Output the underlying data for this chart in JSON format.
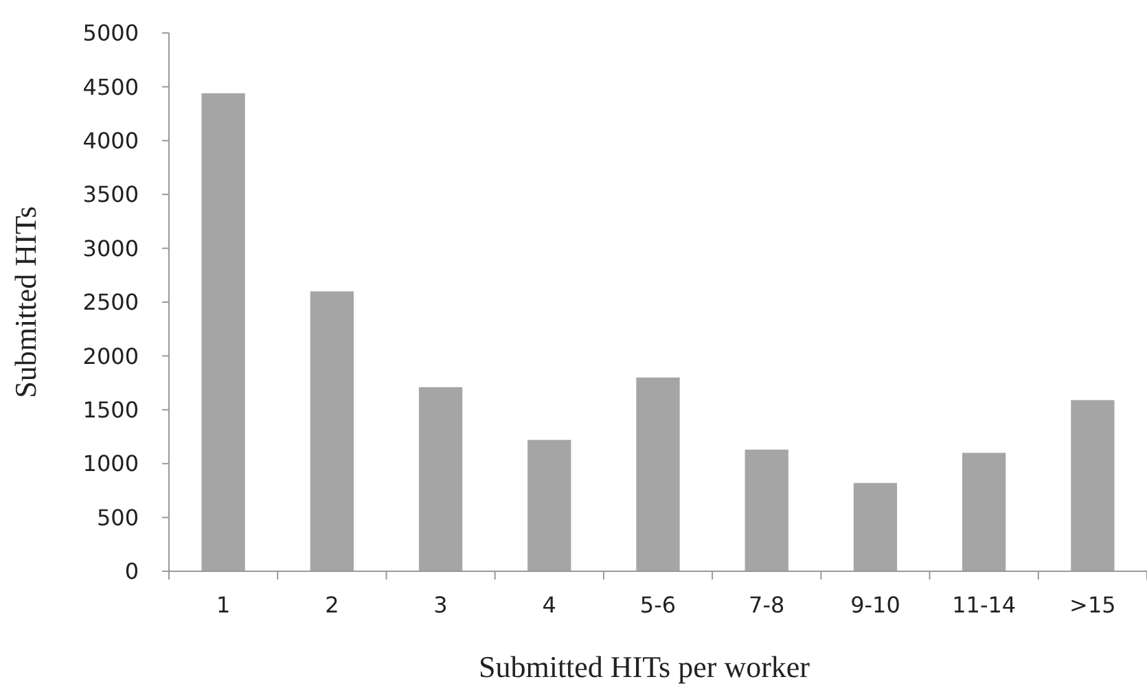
{
  "chart_data": {
    "type": "bar",
    "xlabel": "Submitted HITs per worker",
    "ylabel": "Submitted HITs",
    "categories": [
      "1",
      "2",
      "3",
      "4",
      "5-6",
      "7-8",
      "9-10",
      "11-14",
      ">15"
    ],
    "values": [
      4440,
      2600,
      1710,
      1220,
      1800,
      1130,
      820,
      1100,
      1590
    ],
    "color": "#a5a5a5",
    "ylim": [
      0,
      5000
    ],
    "yticks": [
      0,
      500,
      1000,
      1500,
      2000,
      2500,
      3000,
      3500,
      4000,
      4500,
      5000
    ],
    "grid": false
  }
}
